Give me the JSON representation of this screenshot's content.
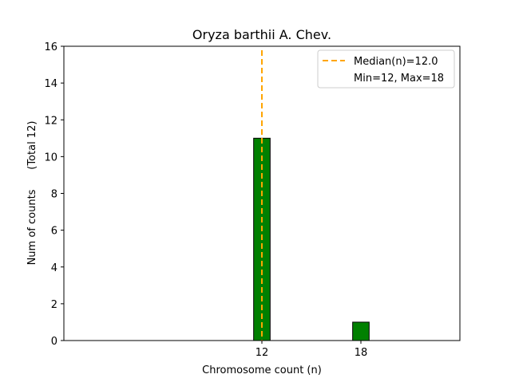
{
  "chart_data": {
    "type": "bar",
    "title": "Oryza barthii A. Chev.",
    "xlabel": "Chromosome count (n)",
    "ylabel": "Num of counts      (Total 12)",
    "x": [
      12,
      18
    ],
    "values": [
      11,
      1
    ],
    "bar_width": 1,
    "bar_color": "#008000",
    "xlim": [
      0,
      24
    ],
    "ylim": [
      0,
      16
    ],
    "xticks": [
      12,
      18
    ],
    "yticks": [
      0,
      2,
      4,
      6,
      8,
      10,
      12,
      14,
      16
    ],
    "baseline_end": 21.5,
    "median": 12.0,
    "median_color": "#FFA500",
    "grid": false,
    "legend": {
      "placement": "top-right",
      "entries": [
        "Median(n)=12.0",
        "Min=12, Max=18"
      ]
    }
  }
}
